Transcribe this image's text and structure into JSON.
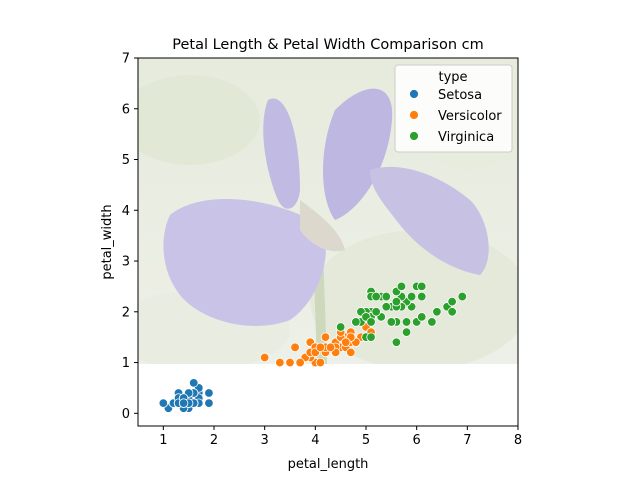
{
  "chart_data": {
    "type": "scatter",
    "title": "Petal Length & Petal Width Comparison cm",
    "xlabel": "petal_length",
    "ylabel": "petal_width",
    "xlim": [
      0.5,
      8
    ],
    "ylim": [
      -0.25,
      7
    ],
    "xticks": [
      1,
      2,
      3,
      4,
      5,
      6,
      7,
      8
    ],
    "yticks": [
      0,
      1,
      2,
      3,
      4,
      5,
      6,
      7
    ],
    "grid": false,
    "legend": {
      "title": "type",
      "position": "top-right"
    },
    "background_image": {
      "subject": "iris flower photograph",
      "y_range": [
        1,
        7
      ]
    },
    "series": [
      {
        "name": "Setosa",
        "color": "#1f77b4",
        "points": [
          [
            1.4,
            0.2
          ],
          [
            1.4,
            0.2
          ],
          [
            1.3,
            0.2
          ],
          [
            1.5,
            0.2
          ],
          [
            1.4,
            0.2
          ],
          [
            1.7,
            0.4
          ],
          [
            1.4,
            0.3
          ],
          [
            1.5,
            0.2
          ],
          [
            1.4,
            0.2
          ],
          [
            1.5,
            0.1
          ],
          [
            1.5,
            0.2
          ],
          [
            1.6,
            0.2
          ],
          [
            1.4,
            0.1
          ],
          [
            1.1,
            0.1
          ],
          [
            1.2,
            0.2
          ],
          [
            1.5,
            0.4
          ],
          [
            1.3,
            0.4
          ],
          [
            1.4,
            0.3
          ],
          [
            1.7,
            0.3
          ],
          [
            1.5,
            0.3
          ],
          [
            1.7,
            0.2
          ],
          [
            1.5,
            0.4
          ],
          [
            1.0,
            0.2
          ],
          [
            1.7,
            0.5
          ],
          [
            1.9,
            0.2
          ],
          [
            1.6,
            0.2
          ],
          [
            1.6,
            0.4
          ],
          [
            1.5,
            0.2
          ],
          [
            1.4,
            0.2
          ],
          [
            1.6,
            0.2
          ],
          [
            1.6,
            0.2
          ],
          [
            1.5,
            0.4
          ],
          [
            1.5,
            0.1
          ],
          [
            1.4,
            0.2
          ],
          [
            1.5,
            0.2
          ],
          [
            1.2,
            0.2
          ],
          [
            1.3,
            0.2
          ],
          [
            1.4,
            0.1
          ],
          [
            1.3,
            0.2
          ],
          [
            1.5,
            0.2
          ],
          [
            1.3,
            0.3
          ],
          [
            1.3,
            0.3
          ],
          [
            1.3,
            0.2
          ],
          [
            1.6,
            0.6
          ],
          [
            1.9,
            0.4
          ],
          [
            1.4,
            0.3
          ],
          [
            1.6,
            0.2
          ],
          [
            1.4,
            0.2
          ],
          [
            1.5,
            0.2
          ],
          [
            1.4,
            0.2
          ]
        ]
      },
      {
        "name": "Versicolor",
        "color": "#ff7f0e",
        "points": [
          [
            4.7,
            1.4
          ],
          [
            4.5,
            1.5
          ],
          [
            4.9,
            1.5
          ],
          [
            4.0,
            1.3
          ],
          [
            4.6,
            1.5
          ],
          [
            4.5,
            1.3
          ],
          [
            4.7,
            1.6
          ],
          [
            3.3,
            1.0
          ],
          [
            4.6,
            1.3
          ],
          [
            3.9,
            1.4
          ],
          [
            3.5,
            1.0
          ],
          [
            4.2,
            1.5
          ],
          [
            4.0,
            1.0
          ],
          [
            4.7,
            1.4
          ],
          [
            3.6,
            1.3
          ],
          [
            4.4,
            1.4
          ],
          [
            4.5,
            1.5
          ],
          [
            4.1,
            1.0
          ],
          [
            4.5,
            1.5
          ],
          [
            3.9,
            1.1
          ],
          [
            4.8,
            1.8
          ],
          [
            4.0,
            1.3
          ],
          [
            4.9,
            1.5
          ],
          [
            4.7,
            1.2
          ],
          [
            4.3,
            1.3
          ],
          [
            4.4,
            1.4
          ],
          [
            4.8,
            1.4
          ],
          [
            5.0,
            1.7
          ],
          [
            4.5,
            1.5
          ],
          [
            3.5,
            1.0
          ],
          [
            3.8,
            1.1
          ],
          [
            3.7,
            1.0
          ],
          [
            3.9,
            1.2
          ],
          [
            5.1,
            1.6
          ],
          [
            4.5,
            1.5
          ],
          [
            4.5,
            1.6
          ],
          [
            4.7,
            1.5
          ],
          [
            4.4,
            1.3
          ],
          [
            4.1,
            1.3
          ],
          [
            4.0,
            1.3
          ],
          [
            4.4,
            1.2
          ],
          [
            4.6,
            1.4
          ],
          [
            4.0,
            1.2
          ],
          [
            3.3,
            1.0
          ],
          [
            4.2,
            1.3
          ],
          [
            4.2,
            1.2
          ],
          [
            4.2,
            1.3
          ],
          [
            4.3,
            1.3
          ],
          [
            3.0,
            1.1
          ],
          [
            4.1,
            1.3
          ]
        ]
      },
      {
        "name": "Virginica",
        "color": "#2ca02c",
        "points": [
          [
            6.0,
            2.5
          ],
          [
            5.1,
            1.9
          ],
          [
            5.9,
            2.1
          ],
          [
            5.6,
            1.8
          ],
          [
            5.8,
            2.2
          ],
          [
            6.6,
            2.1
          ],
          [
            4.5,
            1.7
          ],
          [
            6.3,
            1.8
          ],
          [
            5.8,
            1.8
          ],
          [
            6.1,
            2.5
          ],
          [
            5.1,
            2.0
          ],
          [
            5.3,
            1.9
          ],
          [
            5.5,
            2.1
          ],
          [
            5.0,
            2.0
          ],
          [
            5.1,
            2.4
          ],
          [
            5.3,
            2.3
          ],
          [
            5.5,
            1.8
          ],
          [
            6.7,
            2.2
          ],
          [
            6.9,
            2.3
          ],
          [
            5.0,
            1.5
          ],
          [
            5.7,
            2.3
          ],
          [
            4.9,
            2.0
          ],
          [
            6.7,
            2.0
          ],
          [
            4.9,
            1.8
          ],
          [
            5.7,
            2.1
          ],
          [
            6.0,
            1.8
          ],
          [
            4.8,
            1.8
          ],
          [
            4.9,
            1.8
          ],
          [
            5.6,
            2.1
          ],
          [
            5.8,
            1.6
          ],
          [
            6.1,
            1.9
          ],
          [
            6.4,
            2.0
          ],
          [
            5.6,
            2.2
          ],
          [
            5.1,
            1.5
          ],
          [
            5.6,
            1.4
          ],
          [
            6.1,
            2.3
          ],
          [
            5.6,
            2.4
          ],
          [
            5.5,
            1.8
          ],
          [
            4.8,
            1.8
          ],
          [
            5.4,
            2.1
          ],
          [
            5.6,
            2.4
          ],
          [
            5.1,
            2.3
          ],
          [
            5.1,
            1.9
          ],
          [
            5.9,
            2.3
          ],
          [
            5.7,
            2.5
          ],
          [
            5.2,
            2.3
          ],
          [
            5.0,
            1.9
          ],
          [
            5.2,
            2.0
          ],
          [
            5.4,
            2.3
          ],
          [
            5.1,
            1.8
          ]
        ]
      }
    ]
  }
}
